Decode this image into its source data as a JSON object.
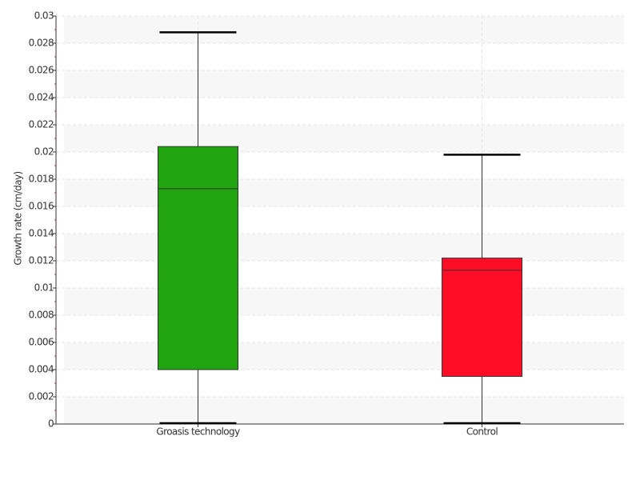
{
  "chart_data": {
    "type": "box",
    "y_label": "Growth rate (cm/day)",
    "categories": [
      "Groasis technology",
      "Control"
    ],
    "boxes": [
      {
        "min": 0,
        "q1": 0.004,
        "median": 0.0173,
        "q3": 0.0204,
        "max": 0.0288,
        "color": "#22a411"
      },
      {
        "min": 0,
        "q1": 0.0035,
        "median": 0.0113,
        "q3": 0.0122,
        "max": 0.0198,
        "color": "#ff0d27"
      }
    ],
    "ylim": [
      0,
      0.03
    ],
    "yticks": [
      0,
      0.002,
      0.004,
      0.006,
      0.008,
      0.01,
      0.012,
      0.014,
      0.016,
      0.018,
      0.02,
      0.022,
      0.024,
      0.026,
      0.028,
      0.03
    ],
    "grid": true
  }
}
